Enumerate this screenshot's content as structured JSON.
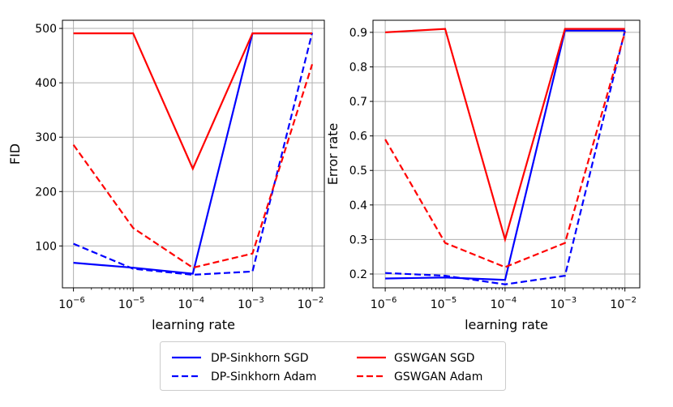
{
  "chart_data": [
    {
      "type": "line",
      "xscale": "log",
      "x": [
        "1e-6",
        "1e-5",
        "1e-4",
        "1e-3",
        "1e-2"
      ],
      "x_values": [
        1e-06,
        1e-05,
        0.0001,
        0.001,
        0.01
      ],
      "xticklabels": [
        {
          "base": "10",
          "exp": "−6"
        },
        {
          "base": "10",
          "exp": "−5"
        },
        {
          "base": "10",
          "exp": "−4"
        },
        {
          "base": "10",
          "exp": "−3"
        },
        {
          "base": "10",
          "exp": "−2"
        }
      ],
      "xlabel": "learning rate",
      "ylabel": "FID",
      "ylim": [
        23,
        515
      ],
      "yticks": [
        100,
        200,
        300,
        400,
        500
      ],
      "yticklabels": [
        "100",
        "200",
        "300",
        "400",
        "500"
      ],
      "grid": true,
      "series": [
        {
          "name": "DP-Sinkhorn SGD",
          "color": "#0000ff",
          "style": "solid",
          "values": [
            69,
            60,
            49,
            491,
            491
          ]
        },
        {
          "name": "DP-Sinkhorn Adam",
          "color": "#0000ff",
          "style": "dashed",
          "values": [
            104,
            58,
            47,
            53,
            492
          ]
        },
        {
          "name": "GSWGAN SGD",
          "color": "#ff0000",
          "style": "solid",
          "values": [
            491,
            491,
            242,
            491,
            491
          ]
        },
        {
          "name": "GSWGAN Adam",
          "color": "#ff0000",
          "style": "dashed",
          "values": [
            286,
            133,
            60,
            86,
            434
          ]
        }
      ]
    },
    {
      "type": "line",
      "xscale": "log",
      "x": [
        "1e-6",
        "1e-5",
        "1e-4",
        "1e-3",
        "1e-2"
      ],
      "x_values": [
        1e-06,
        1e-05,
        0.0001,
        0.001,
        0.01
      ],
      "xticklabels": [
        {
          "base": "10",
          "exp": "−6"
        },
        {
          "base": "10",
          "exp": "−5"
        },
        {
          "base": "10",
          "exp": "−4"
        },
        {
          "base": "10",
          "exp": "−3"
        },
        {
          "base": "10",
          "exp": "−2"
        }
      ],
      "xlabel": "learning rate",
      "ylabel": "Error rate",
      "ylim": [
        0.16,
        0.935
      ],
      "yticks": [
        0.2,
        0.3,
        0.4,
        0.5,
        0.6,
        0.7,
        0.8,
        0.9
      ],
      "yticklabels": [
        "0.2",
        "0.3",
        "0.4",
        "0.5",
        "0.6",
        "0.7",
        "0.8",
        "0.9"
      ],
      "grid": true,
      "series": [
        {
          "name": "DP-Sinkhorn SGD",
          "color": "#0000ff",
          "style": "solid",
          "values": [
            0.187,
            0.19,
            0.183,
            0.905,
            0.905
          ]
        },
        {
          "name": "DP-Sinkhorn Adam",
          "color": "#0000ff",
          "style": "dashed",
          "values": [
            0.203,
            0.195,
            0.17,
            0.195,
            0.905
          ]
        },
        {
          "name": "GSWGAN SGD",
          "color": "#ff0000",
          "style": "solid",
          "values": [
            0.9,
            0.91,
            0.3,
            0.91,
            0.91
          ]
        },
        {
          "name": "GSWGAN Adam",
          "color": "#ff0000",
          "style": "dashed",
          "values": [
            0.59,
            0.29,
            0.22,
            0.29,
            0.9
          ]
        }
      ]
    }
  ],
  "legend": {
    "placement": "bottom-center",
    "entries": [
      {
        "label": "DP-Sinkhorn SGD",
        "color": "#0000ff",
        "style": "solid"
      },
      {
        "label": "DP-Sinkhorn Adam",
        "color": "#0000ff",
        "style": "dashed"
      },
      {
        "label": "GSWGAN SGD",
        "color": "#ff0000",
        "style": "solid"
      },
      {
        "label": "GSWGAN Adam",
        "color": "#ff0000",
        "style": "dashed"
      }
    ]
  }
}
